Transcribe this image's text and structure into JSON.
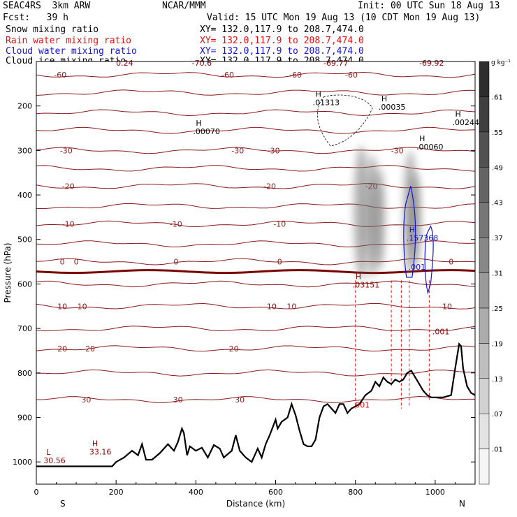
{
  "header": {
    "left_line1": "SEAC4RS  3km ARW",
    "center_line1": "NCAR/MMM",
    "right_line1": "Init: 00 UTC Sun 18 Aug 13",
    "left_line2": "Fcst:   39 h",
    "right_line2": "Valid: 15 UTC Mon 19 Aug 13 (10 CDT Mon 19 Aug 13)"
  },
  "fields": [
    {
      "label": "Snow mixing ratio",
      "xy": "XY= 132.0,117.9 to 208.7,474.0",
      "color": "#000000"
    },
    {
      "label": "Rain water mixing ratio",
      "xy": "XY= 132.0,117.9 to 208.7,474.0",
      "color": "#e01010"
    },
    {
      "label": "Cloud water mixing ratio",
      "xy": "XY= 132.0,117.9 to 208.7,474.0",
      "color": "#1414d0"
    },
    {
      "label": "Cloud ice mixing ratio",
      "xy": "XY= 132.0,117.9 to 208.7,474.0",
      "color": "#000000"
    }
  ],
  "chart_data": {
    "type": "cross-section",
    "xlabel": "Distance (km)",
    "ylabel": "Pressure (hPa)",
    "xlim": [
      0,
      1100
    ],
    "ylim": [
      1050,
      100
    ],
    "x_ticks": [
      0,
      200,
      400,
      600,
      800,
      1000
    ],
    "y_ticks": [
      200,
      300,
      400,
      500,
      600,
      700,
      800,
      900,
      1000
    ],
    "x_end_labels": {
      "left": "S",
      "right": "N"
    },
    "colorbar": {
      "unit": "g kg⁻¹",
      "levels": [
        ".01",
        ".07",
        ".13",
        ".19",
        ".25",
        ".31",
        ".37",
        ".43",
        ".49",
        ".55",
        ".61"
      ]
    },
    "temperature_contours": [
      {
        "value": -60,
        "p": 130,
        "labels": [
          {
            "x": 60,
            "text": "-60"
          },
          {
            "x": 480,
            "text": "-60"
          },
          {
            "x": 650,
            "text": "-60"
          },
          {
            "x": 790,
            "text": "-60"
          }
        ]
      },
      {
        "value": -50,
        "p": 170,
        "labels": []
      },
      {
        "value": -40,
        "p": 215,
        "labels": []
      },
      {
        "value": -35,
        "p": 255,
        "labels": []
      },
      {
        "value": -30,
        "p": 300,
        "labels": [
          {
            "x": 75,
            "text": "-30"
          },
          {
            "x": 505,
            "text": "-30"
          },
          {
            "x": 595,
            "text": "-30"
          },
          {
            "x": 905,
            "text": "-30"
          }
        ]
      },
      {
        "value": -25,
        "p": 340,
        "labels": []
      },
      {
        "value": -20,
        "p": 380,
        "labels": [
          {
            "x": 80,
            "text": "-20"
          },
          {
            "x": 585,
            "text": "-20"
          },
          {
            "x": 840,
            "text": "-20"
          }
        ]
      },
      {
        "value": -15,
        "p": 425,
        "labels": []
      },
      {
        "value": -10,
        "p": 465,
        "labels": [
          {
            "x": 80,
            "text": "-10"
          },
          {
            "x": 350,
            "text": "-10"
          },
          {
            "x": 610,
            "text": "-10"
          }
        ]
      },
      {
        "value": -5,
        "p": 510,
        "labels": []
      },
      {
        "value": 0,
        "p": 550,
        "labels": [
          {
            "x": 65,
            "text": "0"
          },
          {
            "x": 100,
            "text": "0"
          },
          {
            "x": 350,
            "text": "0"
          },
          {
            "x": 610,
            "text": "0"
          },
          {
            "x": 1040,
            "text": "0"
          }
        ]
      },
      {
        "value": 5,
        "p": 600,
        "labels": []
      },
      {
        "value": 10,
        "p": 650,
        "labels": [
          {
            "x": 65,
            "text": "10"
          },
          {
            "x": 115,
            "text": "10"
          },
          {
            "x": 590,
            "text": "10"
          },
          {
            "x": 640,
            "text": "10"
          },
          {
            "x": 1030,
            "text": "10"
          }
        ]
      },
      {
        "value": 15,
        "p": 700,
        "labels": []
      },
      {
        "value": 20,
        "p": 745,
        "labels": [
          {
            "x": 65,
            "text": "20"
          },
          {
            "x": 135,
            "text": "20"
          },
          {
            "x": 495,
            "text": "20"
          }
        ]
      },
      {
        "value": 25,
        "p": 800,
        "labels": []
      },
      {
        "value": 30,
        "p": 860,
        "labels": [
          {
            "x": 125,
            "text": "30"
          },
          {
            "x": 355,
            "text": "30"
          },
          {
            "x": 510,
            "text": "30"
          }
        ]
      }
    ],
    "freezing_level": {
      "p": 572
    },
    "topography": [
      [
        0,
        1010
      ],
      [
        190,
        1010
      ],
      [
        200,
        1000
      ],
      [
        220,
        990
      ],
      [
        240,
        975
      ],
      [
        255,
        985
      ],
      [
        265,
        960
      ],
      [
        275,
        995
      ],
      [
        290,
        995
      ],
      [
        310,
        980
      ],
      [
        330,
        960
      ],
      [
        345,
        975
      ],
      [
        355,
        955
      ],
      [
        365,
        925
      ],
      [
        370,
        935
      ],
      [
        378,
        985
      ],
      [
        385,
        965
      ],
      [
        400,
        975
      ],
      [
        415,
        968
      ],
      [
        430,
        990
      ],
      [
        445,
        962
      ],
      [
        460,
        970
      ],
      [
        470,
        990
      ],
      [
        490,
        975
      ],
      [
        500,
        940
      ],
      [
        510,
        975
      ],
      [
        525,
        990
      ],
      [
        540,
        1000
      ],
      [
        555,
        970
      ],
      [
        565,
        990
      ],
      [
        575,
        960
      ],
      [
        585,
        940
      ],
      [
        600,
        905
      ],
      [
        605,
        925
      ],
      [
        615,
        910
      ],
      [
        630,
        900
      ],
      [
        640,
        870
      ],
      [
        650,
        895
      ],
      [
        660,
        930
      ],
      [
        670,
        960
      ],
      [
        680,
        965
      ],
      [
        690,
        965
      ],
      [
        700,
        950
      ],
      [
        710,
        900
      ],
      [
        720,
        875
      ],
      [
        730,
        870
      ],
      [
        740,
        880
      ],
      [
        750,
        890
      ],
      [
        760,
        870
      ],
      [
        770,
        870
      ],
      [
        780,
        890
      ],
      [
        790,
        880
      ],
      [
        800,
        875
      ],
      [
        810,
        870
      ],
      [
        825,
        850
      ],
      [
        840,
        840
      ],
      [
        850,
        820
      ],
      [
        860,
        830
      ],
      [
        870,
        810
      ],
      [
        880,
        820
      ],
      [
        890,
        825
      ],
      [
        900,
        815
      ],
      [
        910,
        820
      ],
      [
        920,
        815
      ],
      [
        930,
        800
      ],
      [
        940,
        795
      ],
      [
        950,
        810
      ],
      [
        960,
        825
      ],
      [
        970,
        840
      ],
      [
        980,
        850
      ],
      [
        990,
        855
      ],
      [
        1000,
        855
      ],
      [
        1020,
        855
      ],
      [
        1040,
        850
      ],
      [
        1050,
        790
      ],
      [
        1060,
        735
      ],
      [
        1065,
        740
      ],
      [
        1070,
        790
      ],
      [
        1080,
        830
      ],
      [
        1090,
        845
      ],
      [
        1100,
        850
      ]
    ],
    "snow_columns": [
      {
        "x": 800,
        "width": 30,
        "top": 290,
        "bottom": 590
      },
      {
        "x": 830,
        "width": 25,
        "top": 310,
        "bottom": 585
      },
      {
        "x": 850,
        "width": 20,
        "top": 340,
        "bottom": 570
      },
      {
        "x": 925,
        "width": 25,
        "top": 300,
        "bottom": 580
      },
      {
        "x": 940,
        "width": 20,
        "top": 350,
        "bottom": 560
      }
    ],
    "rain_lines_x": [
      800,
      890,
      915,
      935,
      985
    ],
    "rain_lines_bottom": [
      880,
      830,
      880,
      875,
      860
    ],
    "annotations": [
      {
        "x": 25,
        "p": 1000,
        "text": "L",
        "sub": "30.56",
        "color": "#8b0000"
      },
      {
        "x": 140,
        "p": 980,
        "text": "H",
        "sub": "33.16",
        "color": "#8b0000"
      },
      {
        "x": 400,
        "p": 260,
        "text": "H",
        "sub": ".00070",
        "color": "#000000"
      },
      {
        "x": 700,
        "p": 195,
        "text": "H",
        "sub": ".01313",
        "color": "#000000"
      },
      {
        "x": 865,
        "p": 205,
        "text": "H",
        "sub": ".00035",
        "color": "#000000"
      },
      {
        "x": 960,
        "p": 295,
        "text": "H",
        "sub": ".00060",
        "color": "#000000"
      },
      {
        "x": 1050,
        "p": 240,
        "text": "H",
        "sub": ".00244",
        "color": "#000000"
      },
      {
        "x": 800,
        "p": 605,
        "text": "H",
        "sub": ".03151",
        "color": "#8b0000"
      },
      {
        "x": 935,
        "p": 500,
        "text": "H",
        "sub": ".157368",
        "color": "#1414d0"
      },
      {
        "x": 940,
        "p": 565,
        "text": "",
        "sub": ".001",
        "color": "#1414d0"
      },
      {
        "x": 1000,
        "p": 710,
        "text": "",
        "sub": ".001",
        "color": "#8b0000"
      },
      {
        "x": 800,
        "p": 875,
        "text": "",
        "sub": ".001",
        "color": "#e01010"
      }
    ],
    "top_labels": [
      {
        "x": 200,
        "text": "0.24",
        "color": "#8b0000"
      },
      {
        "x": 390,
        "text": "-70.6",
        "color": "#8b0000"
      },
      {
        "x": 720,
        "text": "-69.77",
        "color": "#8b0000"
      },
      {
        "x": 960,
        "text": "-69.92",
        "color": "#8b0000"
      }
    ]
  }
}
